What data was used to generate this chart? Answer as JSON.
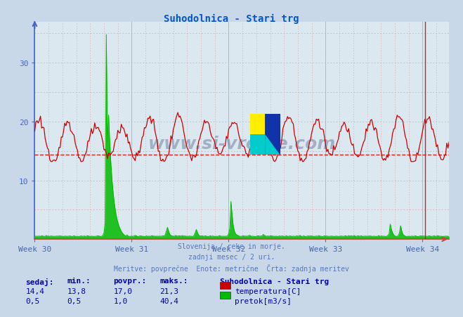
{
  "title": "Suhodolnica - Stari trg",
  "title_color": "#0055cc",
  "bg_color": "#c8d8e8",
  "plot_bg_color": "#dce8f0",
  "grid_major_color": "#aabbcc",
  "grid_minor_color": "#ddaaaa",
  "x_labels": [
    "Week 30",
    "Week 31",
    "Week 32",
    "Week 33",
    "Week 34"
  ],
  "y_min": 0,
  "y_max": 37,
  "y_ticks": [
    10,
    20,
    30
  ],
  "temp_color": "#cc0000",
  "flow_color": "#00bb00",
  "avg_line_color": "#cc0000",
  "avg_line_value": 14.4,
  "spine_left_color": "#4466cc",
  "spine_bottom_color": "#cc4444",
  "footer_line1": "Slovenija / reke in morje.",
  "footer_line2": "zadnji mesec / 2 uri.",
  "footer_line3": "Meritve: povprečne  Enote: metrične  Črta: zadnja meritev",
  "footer_color": "#5577bb",
  "table_header": [
    "sedaj:",
    "min.:",
    "povpr.:",
    "maks.:"
  ],
  "table_color": "#0000aa",
  "temp_row": [
    "14,4",
    "13,8",
    "17,0",
    "21,3"
  ],
  "flow_row": [
    "0,5",
    "0,5",
    "1,0",
    "40,4"
  ],
  "legend_title": "Suhodolnica - Stari trg",
  "legend_temp": "temperatura[C]",
  "legend_flow": "pretok[m3/s]",
  "n_points": 360,
  "pts_per_week": 84,
  "flow_axis_max": 40.4,
  "y_axis_max": 37.0
}
